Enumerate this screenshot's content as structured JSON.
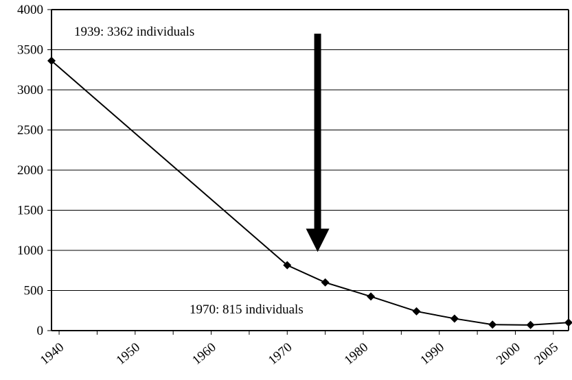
{
  "chart_data": {
    "type": "line",
    "title": "",
    "xlabel": "",
    "ylabel": "",
    "xlim": [
      1939,
      2007
    ],
    "ylim": [
      0,
      4000
    ],
    "grid": "horizontal",
    "legend": "none",
    "x_ticks": [
      1940,
      1950,
      1960,
      1970,
      1980,
      1990,
      2000,
      2005
    ],
    "y_ticks": [
      0,
      500,
      1000,
      1500,
      2000,
      2500,
      3000,
      3500,
      4000
    ],
    "series": [
      {
        "color": "#000000",
        "marker": "diamond",
        "x": [
          1939,
          1970,
          1975,
          1981,
          1987,
          1992,
          1997,
          2002,
          2007
        ],
        "y": [
          3362,
          815,
          600,
          425,
          240,
          150,
          75,
          70,
          100
        ]
      }
    ],
    "annotations": [
      {
        "text": "1939: 3362 individuals"
      },
      {
        "text": "1970: 815 individuals"
      }
    ],
    "arrow": {
      "x": 1974,
      "y_from": 3700,
      "y_to": 980,
      "color": "#000000"
    }
  }
}
